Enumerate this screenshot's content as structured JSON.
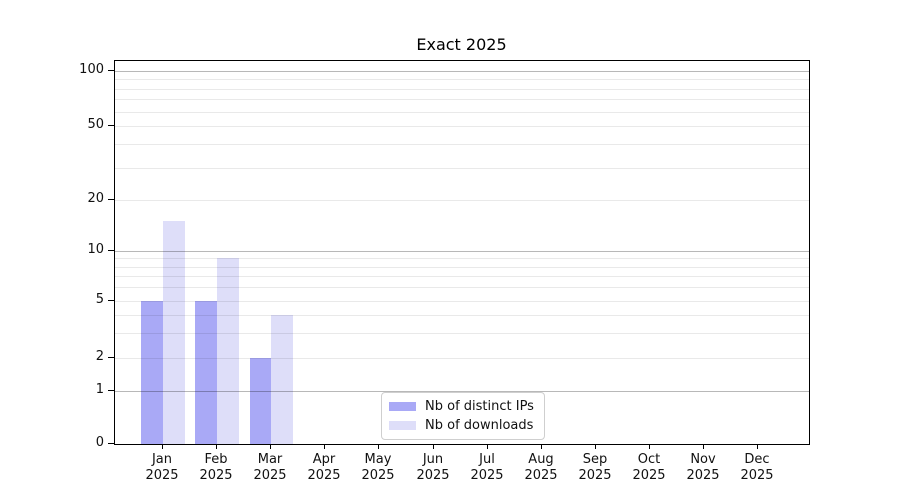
{
  "chart_data": {
    "type": "bar",
    "title": "Exact 2025",
    "categories": [
      "Jan",
      "Feb",
      "Mar",
      "Apr",
      "May",
      "Jun",
      "Jul",
      "Aug",
      "Sep",
      "Oct",
      "Nov",
      "Dec"
    ],
    "x_tick_year": "2025",
    "series": [
      {
        "name": "Nb of distinct IPs",
        "color": "#a9a9f6",
        "values": [
          5,
          5,
          2,
          0,
          0,
          0,
          0,
          0,
          0,
          0,
          0,
          0
        ]
      },
      {
        "name": "Nb of downloads",
        "color": "#dedef9",
        "values": [
          15,
          9,
          4,
          0,
          0,
          0,
          0,
          0,
          0,
          0,
          0,
          0
        ]
      }
    ],
    "y_axis": {
      "labeled_ticks": [
        0,
        1,
        2,
        5,
        10,
        20,
        50,
        100
      ],
      "minor_gridlines": [
        3,
        4,
        6,
        7,
        8,
        9,
        30,
        40,
        60,
        70,
        80,
        90
      ],
      "scale": "log-like with 0 baseline",
      "ylim": [
        0,
        110
      ]
    },
    "legend": {
      "position": "lower-center-inside"
    },
    "grid": true,
    "colors": {
      "major_gridline": "rgba(0,0,0,0.28)",
      "minor_gridline": "rgba(0,0,0,0.085)",
      "axis": "#000000",
      "text": "#111111"
    }
  }
}
